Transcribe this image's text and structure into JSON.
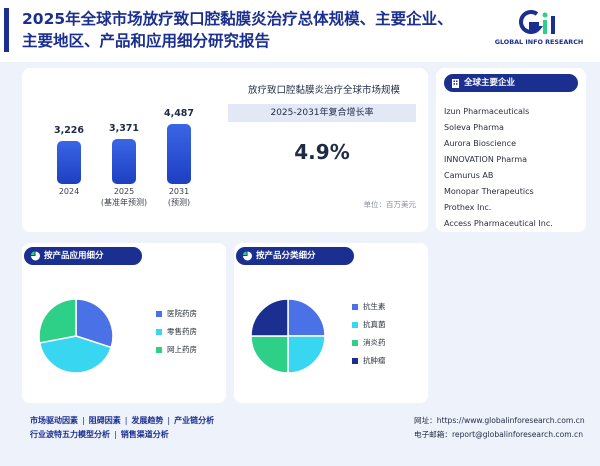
{
  "header": {
    "title_line1": "2025年全球市场放疗致口腔黏膜炎治疗总体规模、主要企业、",
    "title_line2": "主要地区、产品和应用细分研究报告",
    "logo_letters": "GIR",
    "logo_text": "GLOBAL INFO RESEARCH"
  },
  "market": {
    "title": "放疗致口腔黏膜炎治疗全球市场规模",
    "cagr_label": "2025-2031年复合增长率",
    "cagr_value": "4.9%",
    "unit": "单位：百万美元",
    "bar_color": "#2a4fd6"
  },
  "chart_data": [
    {
      "type": "bar",
      "title": "放疗致口腔黏膜炎治疗全球市场规模",
      "categories": [
        "2024",
        "2025",
        "2031"
      ],
      "category_notes": [
        "",
        "(基准年预测)",
        "(预测)"
      ],
      "values": [
        3226,
        3371,
        4487
      ],
      "value_labels": [
        "3,226",
        "3,371",
        "4,487"
      ],
      "unit": "百万美元"
    },
    {
      "type": "pie",
      "title": "按产品应用细分",
      "labels": [
        "医院药房",
        "零售药房",
        "网上药房"
      ],
      "values": [
        30,
        42,
        28
      ],
      "colors": [
        "#4a72e6",
        "#38d6f0",
        "#2ecf86"
      ]
    },
    {
      "type": "pie",
      "title": "按产品分类细分",
      "labels": [
        "抗生素",
        "抗真菌",
        "消炎药",
        "抗肿瘤"
      ],
      "values": [
        25,
        25,
        25,
        25
      ],
      "colors": [
        "#4a72e6",
        "#38d6f0",
        "#2ecf86",
        "#1a2f8f"
      ]
    }
  ],
  "companies": {
    "header": "全球主要企业",
    "items": [
      "Izun Pharmaceuticals",
      "Soleva Pharma",
      "Aurora Bioscience",
      "INNOVATION Pharma",
      "Camurus AB",
      "Monopar Therapeutics",
      "Prothex Inc.",
      "Access Pharmaceutical Inc."
    ]
  },
  "sections": {
    "app_header": "按产品应用细分",
    "type_header": "按产品分类细分"
  },
  "footer": {
    "links_row1": [
      "市场驱动因素",
      "阻碍因素",
      "发展趋势",
      "产业链分析"
    ],
    "links_row2": [
      "行业波特五力模型分析",
      "销售渠道分析"
    ],
    "website_label": "网址：",
    "website": "https://www.globalinforesearch.com.cn",
    "email_label": "电子邮箱：",
    "email": "report@globalinforesearch.com.cn"
  },
  "colors": {
    "brand_navy": "#1a2f8f",
    "accent_green": "#2ecf86"
  }
}
